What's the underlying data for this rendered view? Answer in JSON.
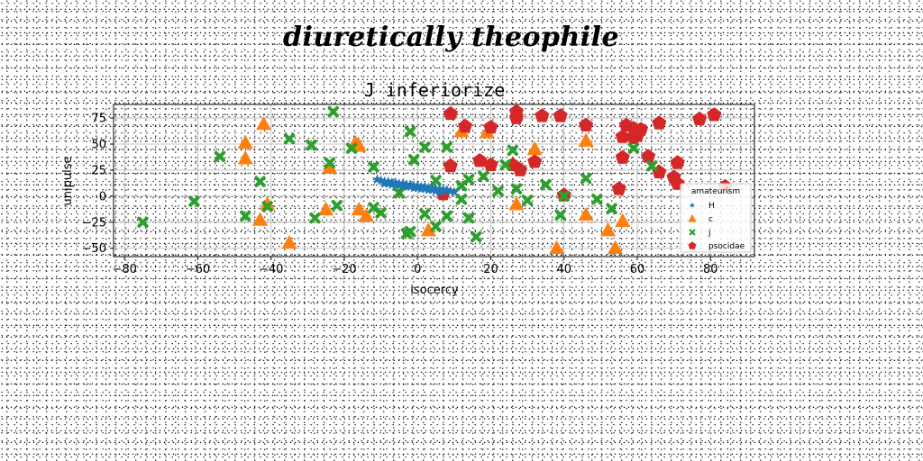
{
  "page_title": "diuretically theophile",
  "colors": {
    "H": "#1f77b4",
    "c": "#ff7f0e",
    "j": "#2ca02c",
    "psocidae": "#d62728"
  },
  "chart_data": {
    "type": "scatter",
    "title": "J inferiorize",
    "xlabel": "isocercy",
    "ylabel": "unipulse",
    "xlim": [
      -83,
      92
    ],
    "ylim": [
      -58,
      88
    ],
    "xticks": [
      -80,
      -60,
      -40,
      -20,
      0,
      20,
      40,
      60,
      80
    ],
    "xtick_labels": [
      "−80",
      "−60",
      "−40",
      "−20",
      "0",
      "20",
      "40",
      "60",
      "80"
    ],
    "yticks": [
      -50,
      -25,
      0,
      25,
      50,
      75
    ],
    "ytick_labels": [
      "−50",
      "−25",
      "0",
      "25",
      "50",
      "75"
    ],
    "grid": true,
    "legend": {
      "title": "amateurism",
      "position": "center-right"
    },
    "series": [
      {
        "name": "H",
        "marker": "star",
        "color": "#1f77b4",
        "points": [
          [
            -11,
            16
          ],
          [
            -10,
            15
          ],
          [
            -9,
            14
          ],
          [
            -9,
            12
          ],
          [
            -8,
            14
          ],
          [
            -8,
            12
          ],
          [
            -7,
            13
          ],
          [
            -7,
            11
          ],
          [
            -6,
            13
          ],
          [
            -6,
            11
          ],
          [
            -5,
            12
          ],
          [
            -5,
            10
          ],
          [
            -4,
            12
          ],
          [
            -4,
            10
          ],
          [
            -3,
            11
          ],
          [
            -3,
            9
          ],
          [
            -2,
            11
          ],
          [
            -2,
            9
          ],
          [
            -1,
            10
          ],
          [
            -1,
            8
          ],
          [
            0,
            10
          ],
          [
            0,
            8
          ],
          [
            1,
            9
          ],
          [
            1,
            7
          ],
          [
            2,
            9
          ],
          [
            2,
            7
          ],
          [
            3,
            8
          ],
          [
            3,
            6
          ],
          [
            4,
            8
          ],
          [
            4,
            6
          ],
          [
            5,
            7
          ],
          [
            5,
            5
          ],
          [
            6,
            7
          ],
          [
            6,
            5
          ],
          [
            7,
            6
          ],
          [
            7,
            4
          ],
          [
            8,
            6
          ],
          [
            9,
            5
          ],
          [
            10,
            4
          ]
        ]
      },
      {
        "name": "c",
        "marker": "triangle",
        "color": "#ff7f0e",
        "points": [
          [
            -42,
            69
          ],
          [
            -17,
            51
          ],
          [
            -16,
            48
          ],
          [
            -47,
            51
          ],
          [
            -47,
            36
          ],
          [
            -24,
            27
          ],
          [
            -41,
            -8
          ],
          [
            -43,
            -23
          ],
          [
            -35,
            -45
          ],
          [
            -25,
            -13
          ],
          [
            -16,
            -13
          ],
          [
            -14,
            -19
          ],
          [
            3,
            -33
          ],
          [
            12,
            62
          ],
          [
            19,
            61
          ],
          [
            32,
            45
          ],
          [
            27,
            -8
          ],
          [
            46,
            53
          ],
          [
            46,
            -18
          ],
          [
            38,
            -50
          ],
          [
            52,
            -33
          ],
          [
            54,
            -50
          ],
          [
            56,
            -24
          ]
        ]
      },
      {
        "name": "j",
        "marker": "x",
        "color": "#2ca02c",
        "points": [
          [
            -75,
            -25
          ],
          [
            -54,
            38
          ],
          [
            -61,
            -5
          ],
          [
            -47,
            -19
          ],
          [
            -43,
            14
          ],
          [
            -41,
            -10
          ],
          [
            -35,
            55
          ],
          [
            -29,
            49
          ],
          [
            -28,
            -21
          ],
          [
            -23,
            81
          ],
          [
            -24,
            32
          ],
          [
            -22,
            -9
          ],
          [
            -18,
            46
          ],
          [
            -12,
            28
          ],
          [
            -12,
            -11
          ],
          [
            -10,
            -16
          ],
          [
            -5,
            3
          ],
          [
            -3,
            -36
          ],
          [
            -2,
            -34
          ],
          [
            -2,
            62
          ],
          [
            -1,
            35
          ],
          [
            2,
            47
          ],
          [
            2,
            -17
          ],
          [
            5,
            -29
          ],
          [
            5,
            15
          ],
          [
            8,
            47
          ],
          [
            8,
            -19
          ],
          [
            12,
            -3
          ],
          [
            12,
            10
          ],
          [
            14,
            16
          ],
          [
            14,
            -21
          ],
          [
            16,
            -39
          ],
          [
            18,
            19
          ],
          [
            22,
            5
          ],
          [
            24,
            30
          ],
          [
            26,
            44
          ],
          [
            27,
            7
          ],
          [
            30,
            -4
          ],
          [
            35,
            11
          ],
          [
            39,
            -18
          ],
          [
            40,
            0
          ],
          [
            46,
            17
          ],
          [
            49,
            -3
          ],
          [
            53,
            -12
          ],
          [
            59,
            46
          ],
          [
            64,
            29
          ]
        ]
      },
      {
        "name": "psocidae",
        "marker": "pentagon",
        "color": "#d62728",
        "points": [
          [
            9,
            79
          ],
          [
            13,
            67
          ],
          [
            20,
            66
          ],
          [
            27,
            75
          ],
          [
            27,
            81
          ],
          [
            34,
            77
          ],
          [
            39,
            77
          ],
          [
            46,
            68
          ],
          [
            57,
            68
          ],
          [
            59,
            65
          ],
          [
            61,
            64
          ],
          [
            60,
            58
          ],
          [
            66,
            70
          ],
          [
            77,
            74
          ],
          [
            81,
            78
          ],
          [
            56,
            57
          ],
          [
            59,
            56
          ],
          [
            17,
            34
          ],
          [
            20,
            30
          ],
          [
            26,
            30
          ],
          [
            28,
            25
          ],
          [
            32,
            33
          ],
          [
            9,
            29
          ],
          [
            56,
            37
          ],
          [
            63,
            38
          ],
          [
            66,
            23
          ],
          [
            71,
            32
          ],
          [
            70,
            18
          ],
          [
            71,
            12
          ],
          [
            84,
            9
          ],
          [
            55,
            7
          ],
          [
            40,
            1
          ],
          [
            7,
            2
          ]
        ]
      }
    ]
  }
}
